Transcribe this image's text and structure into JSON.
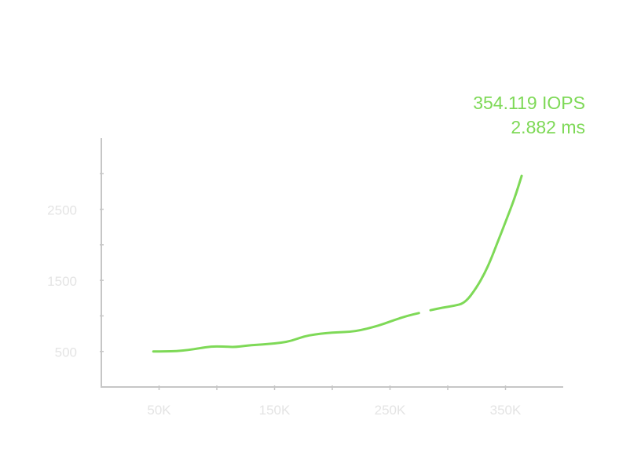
{
  "chart_data": {
    "type": "line",
    "title": "",
    "xlabel": "",
    "ylabel": "",
    "xlim": [
      0,
      400000
    ],
    "ylim": [
      0,
      3500
    ],
    "x_ticks": [
      {
        "value": 50000,
        "label": "50K"
      },
      {
        "value": 150000,
        "label": "150K"
      },
      {
        "value": 250000,
        "label": "250K"
      },
      {
        "value": 350000,
        "label": "350K"
      }
    ],
    "y_ticks": [
      {
        "value": 500,
        "label": "500"
      },
      {
        "value": 1500,
        "label": "1500"
      },
      {
        "value": 2500,
        "label": "2500"
      }
    ],
    "series": [
      {
        "color": "#7ed957",
        "x": [
          45000,
          55000,
          65000,
          75000,
          85000,
          95000,
          105000,
          115000,
          125000,
          135000,
          145000,
          155000,
          165000,
          175000,
          185000,
          195000,
          205000,
          215000,
          225000,
          235000,
          245000,
          255000,
          265000,
          275000,
          285000,
          295000,
          305000,
          315000,
          325000,
          332000,
          337000,
          343000,
          350000,
          358000,
          364000
        ],
        "y": [
          500,
          500,
          505,
          520,
          545,
          570,
          570,
          560,
          580,
          595,
          605,
          620,
          650,
          710,
          740,
          760,
          770,
          775,
          800,
          840,
          890,
          950,
          1000,
          1040,
          1080,
          1115,
          1140,
          1180,
          1400,
          1600,
          1780,
          2030,
          2320,
          2660,
          2970
        ]
      }
    ],
    "gap_between_x": [
      276000,
      283000
    ],
    "annotation": {
      "line1": "354.119 IOPS",
      "line2": "2.882 ms"
    },
    "grid": false,
    "legend": "none"
  }
}
